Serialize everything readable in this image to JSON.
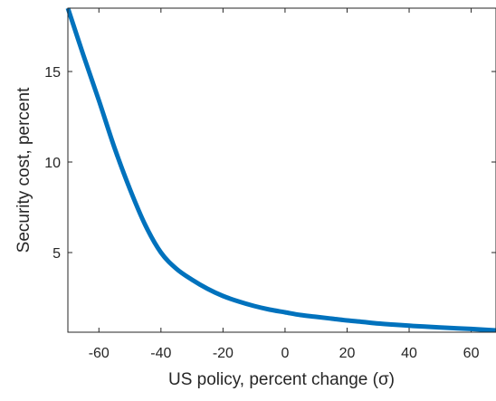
{
  "chart_data": {
    "type": "line",
    "title": "",
    "xlabel": "US policy, percent change (σ)",
    "ylabel": "Security cost, percent",
    "xlim": [
      -70,
      68
    ],
    "ylim": [
      0.6,
      18.5
    ],
    "grid": false,
    "legend": "none",
    "x_ticks": [
      -60,
      -40,
      -20,
      0,
      20,
      40,
      60
    ],
    "x_tick_labels": [
      "-60",
      "-40",
      "-20",
      "0",
      "20",
      "40",
      "60"
    ],
    "y_ticks": [
      5,
      10,
      15
    ],
    "y_tick_labels": [
      "5",
      "10",
      "15"
    ],
    "series": [
      {
        "color": "#0072BD",
        "x": [
          -70,
          -65,
          -60,
          -55,
          -50,
          -45,
          -40,
          -35,
          -30,
          -25,
          -20,
          -15,
          -10,
          -5,
          0,
          5,
          10,
          15,
          20,
          25,
          30,
          35,
          40,
          45,
          50,
          55,
          60,
          68
        ],
        "y": [
          18.5,
          15.9,
          13.4,
          10.8,
          8.5,
          6.5,
          5.0,
          4.1,
          3.5,
          3.0,
          2.6,
          2.3,
          2.05,
          1.85,
          1.7,
          1.55,
          1.45,
          1.35,
          1.25,
          1.17,
          1.08,
          1.02,
          0.96,
          0.91,
          0.86,
          0.82,
          0.78,
          0.7
        ]
      }
    ]
  }
}
